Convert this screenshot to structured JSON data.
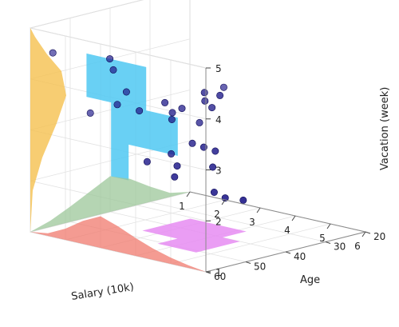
{
  "chart_data": {
    "type": "scatter",
    "title": "",
    "xlabel": "Salary (10k)",
    "ylabel": "Age",
    "zlabel": "Vacation (week)",
    "x_ticks": [
      "1",
      "2",
      "3",
      "4",
      "5",
      "6"
    ],
    "y_ticks": [
      "20",
      "30",
      "40",
      "50",
      "60"
    ],
    "z_ticks": [
      "1",
      "2",
      "3",
      "4",
      "5"
    ],
    "xlim": [
      1,
      6
    ],
    "ylim": [
      20,
      60
    ],
    "zlim": [
      1,
      5
    ],
    "grid": true,
    "colors": {
      "points": "#1f1a8a",
      "xy_projection": "#e68cf2",
      "xz_projection": "#4fc8f2",
      "marginal_x": "#f07a6e",
      "marginal_y": "#9cc79a",
      "marginal_z": "#f5c14f"
    },
    "points": [
      {
        "x": 1.3,
        "y": 57,
        "z": 4.5
      },
      {
        "x": 1.8,
        "y": 52,
        "z": 3.3
      },
      {
        "x": 1.9,
        "y": 48,
        "z": 4.3
      },
      {
        "x": 2.0,
        "y": 48,
        "z": 4.1
      },
      {
        "x": 2.0,
        "y": 47,
        "z": 3.4
      },
      {
        "x": 2.4,
        "y": 45,
        "z": 3.3
      },
      {
        "x": 2.6,
        "y": 50,
        "z": 3.8
      },
      {
        "x": 2.9,
        "y": 43,
        "z": 3.5
      },
      {
        "x": 3.0,
        "y": 42,
        "z": 3.3
      },
      {
        "x": 3.1,
        "y": 43,
        "z": 3.2
      },
      {
        "x": 3.5,
        "y": 44,
        "z": 3.5
      },
      {
        "x": 3.7,
        "y": 40,
        "z": 3.6
      },
      {
        "x": 3.8,
        "y": 41,
        "z": 3.8
      },
      {
        "x": 3.9,
        "y": 38,
        "z": 3.7
      },
      {
        "x": 3.9,
        "y": 40,
        "z": 3.5
      },
      {
        "x": 4.0,
        "y": 44,
        "z": 3.3
      },
      {
        "x": 5.6,
        "y": 52,
        "z": 4.4
      },
      {
        "x": 3.0,
        "y": 37,
        "z": 2.6
      },
      {
        "x": 3.1,
        "y": 35,
        "z": 2.5
      },
      {
        "x": 3.2,
        "y": 33,
        "z": 2.4
      },
      {
        "x": 2.4,
        "y": 37,
        "z": 2.3
      },
      {
        "x": 2.0,
        "y": 32,
        "z": 1.9
      },
      {
        "x": 2.9,
        "y": 31,
        "z": 2.0
      },
      {
        "x": 1.7,
        "y": 30,
        "z": 1.6
      },
      {
        "x": 2.6,
        "y": 28,
        "z": 1.4
      },
      {
        "x": 2.8,
        "y": 27,
        "z": 1.3
      },
      {
        "x": 3.2,
        "y": 26,
        "z": 1.3
      },
      {
        "x": 1.6,
        "y": 36,
        "z": 2.0
      }
    ],
    "xy_projection_polygon": [
      [
        2.6,
        34
      ],
      [
        4.2,
        34
      ],
      [
        4.2,
        40
      ],
      [
        4.7,
        40
      ],
      [
        4.7,
        51
      ],
      [
        3.6,
        51
      ],
      [
        3.6,
        46
      ],
      [
        2.6,
        46
      ]
    ],
    "xz_projection_polygon": [
      [
        2.6,
        4.75
      ],
      [
        4.3,
        4.75
      ],
      [
        4.3,
        3.9
      ],
      [
        5.2,
        3.9
      ],
      [
        5.2,
        3.15
      ],
      [
        3.8,
        3.15
      ],
      [
        3.8,
        2.45
      ],
      [
        3.3,
        2.45
      ],
      [
        3.3,
        3.9
      ],
      [
        2.6,
        3.9
      ]
    ],
    "marginal_x_curve": [
      [
        1.0,
        0.0
      ],
      [
        1.5,
        0.05
      ],
      [
        2.0,
        0.22
      ],
      [
        2.5,
        0.45
      ],
      [
        3.0,
        0.62
      ],
      [
        3.5,
        0.5
      ],
      [
        4.0,
        0.35
      ],
      [
        4.5,
        0.22
      ],
      [
        5.0,
        0.12
      ],
      [
        5.5,
        0.05
      ],
      [
        6.0,
        0.0
      ]
    ],
    "marginal_y_curve": [
      [
        20,
        0.0
      ],
      [
        25,
        0.08
      ],
      [
        30,
        0.3
      ],
      [
        35,
        0.55
      ],
      [
        40,
        0.7
      ],
      [
        45,
        0.5
      ],
      [
        50,
        0.3
      ],
      [
        55,
        0.12
      ],
      [
        60,
        0.0
      ]
    ],
    "marginal_z_curve": [
      [
        1.0,
        0.0
      ],
      [
        1.8,
        0.05
      ],
      [
        2.4,
        0.25
      ],
      [
        3.0,
        0.55
      ],
      [
        3.5,
        0.75
      ],
      [
        4.0,
        0.65
      ],
      [
        4.4,
        0.35
      ],
      [
        4.8,
        0.1
      ],
      [
        5.0,
        0.0
      ]
    ]
  }
}
